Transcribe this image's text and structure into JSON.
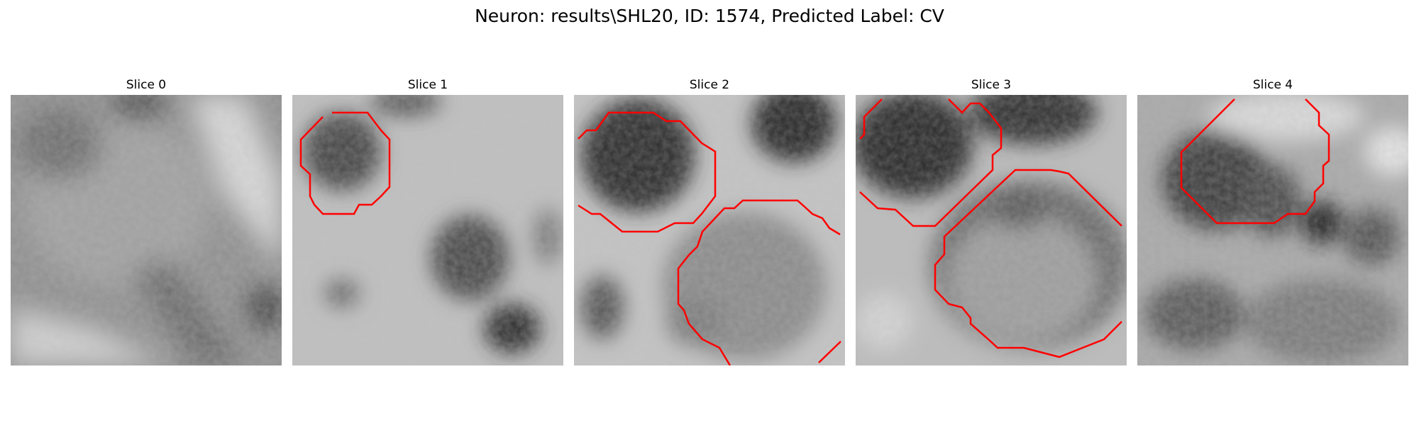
{
  "figure": {
    "title": "Neuron: results\\SHL20, ID: 1574, Predicted Label: CV"
  },
  "colors": {
    "contour": "#ff0000",
    "dark": "#1e1e1e",
    "light": "#e8e8e8"
  },
  "panels": [
    {
      "title": "Slice 0"
    },
    {
      "title": "Slice 1"
    },
    {
      "title": "Slice 2"
    },
    {
      "title": "Slice 3"
    },
    {
      "title": "Slice 4"
    }
  ]
}
